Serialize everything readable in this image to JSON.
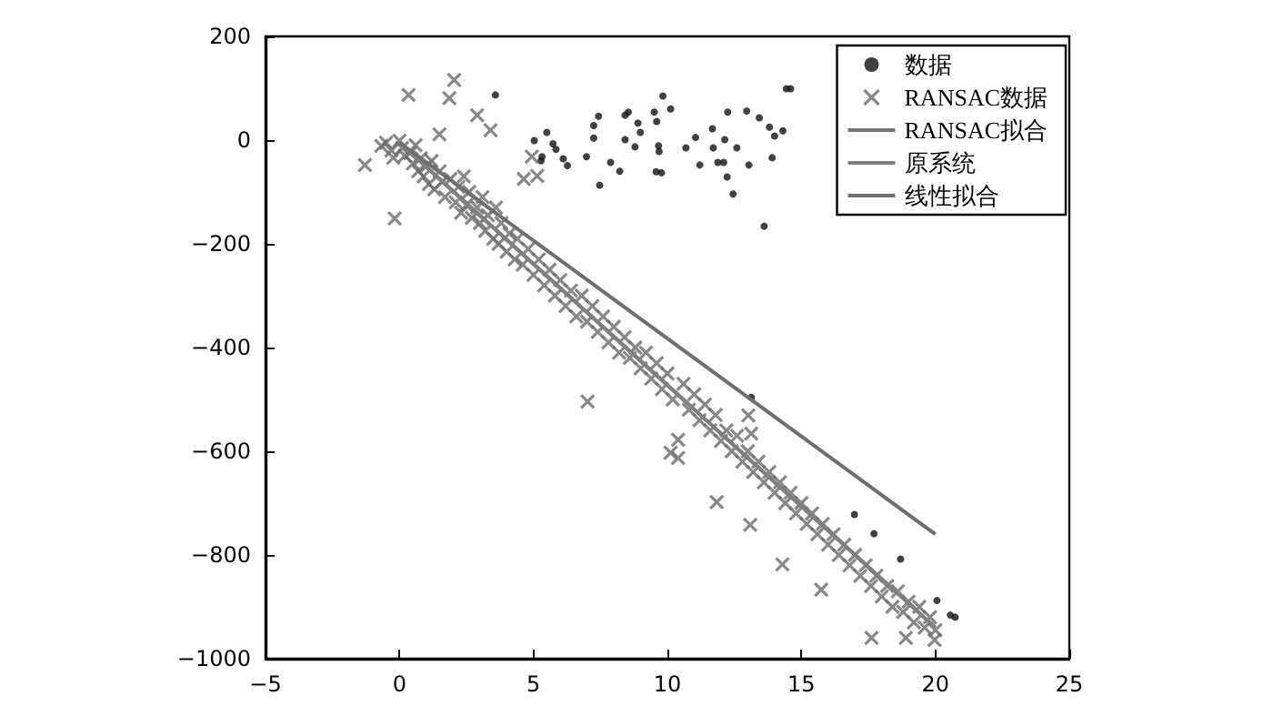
{
  "chart_data": {
    "type": "scatter",
    "xlim": [
      -5,
      25
    ],
    "xticks": [
      -5,
      0,
      5,
      10,
      15,
      20,
      25
    ],
    "ylim": [
      -1000,
      200
    ],
    "yticks": [
      -1000,
      -800,
      -600,
      -400,
      -200,
      0,
      200
    ],
    "grid": false,
    "legend": "top right",
    "series": [
      {
        "name": "数据",
        "type": "scatter",
        "marker": "circle",
        "color": "#111111",
        "x": [
          3.58,
          5.03,
          5.5,
          5.73,
          5.84,
          5.32,
          5.28,
          6.11,
          6.27,
          6.98,
          7.25,
          7.25,
          7.43,
          7.47,
          7.88,
          8.22,
          8.42,
          8.54,
          8.42,
          8.79,
          8.9,
          8.99,
          9.51,
          9.6,
          9.67,
          9.69,
          9.83,
          10.12,
          9.58,
          9.78,
          10.69,
          11.05,
          11.21,
          11.68,
          11.71,
          11.88,
          12.1,
          12.14,
          12.25,
          12.23,
          12.45,
          12.59,
          12.96,
          13.04,
          13.43,
          13.61,
          13.81,
          14.0,
          13.91,
          14.31,
          14.44,
          14.6,
          13.13,
          16.98,
          17.71,
          18.7,
          20.06,
          20.56,
          20.74
        ],
        "values": [
          87,
          -1,
          15,
          -7,
          -18,
          -32,
          -40,
          -36,
          -49,
          -32,
          28,
          4,
          46,
          -87,
          -43,
          -60,
          48,
          54,
          1,
          -13,
          33,
          15,
          54,
          36,
          -11,
          -22,
          85,
          60,
          -61,
          -63,
          -15,
          5,
          -48,
          22,
          -15,
          -43,
          -43,
          1,
          54,
          -71,
          -104,
          -15,
          56,
          -48,
          43,
          -166,
          25,
          8,
          -34,
          18,
          99,
          99,
          -496,
          -722,
          -759,
          -808,
          -888,
          -916,
          -920
        ]
      },
      {
        "name": "RANSAC数据",
        "type": "scatter",
        "marker": "cross",
        "color": "#6a6a6a",
        "x": [
          -1.29,
          -0.68,
          -0.5,
          -0.3,
          -0.23,
          -0.18,
          0,
          0.1,
          0.2,
          0.34,
          0.4,
          0.5,
          0.6,
          0.7,
          0.8,
          0.9,
          1.0,
          1.1,
          1.2,
          1.3,
          1.49,
          1.5,
          1.6,
          1.7,
          1.86,
          1.9,
          2.04,
          2.1,
          2.2,
          2.3,
          2.4,
          2.5,
          2.6,
          2.7,
          2.9,
          2.9,
          3.0,
          3.1,
          3.2,
          3.4,
          3.3,
          3.5,
          3.6,
          3.7,
          3.8,
          4.0,
          4.1,
          4.3,
          4.4,
          4.64,
          4.6,
          4.8,
          4.94,
          5.0,
          5.14,
          5.2,
          5.4,
          5.6,
          5.8,
          6.0,
          6.2,
          6.4,
          6.6,
          6.8,
          7.02,
          7.0,
          7.2,
          7.4,
          7.6,
          7.8,
          8.0,
          8.2,
          8.4,
          8.6,
          8.8,
          9.0,
          9.2,
          9.4,
          9.6,
          9.8,
          10.0,
          10.12,
          10.4,
          10.4,
          10.2,
          10.6,
          10.8,
          11.0,
          11.2,
          11.4,
          11.6,
          11.84,
          11.8,
          12.0,
          12.2,
          12.4,
          12.6,
          12.8,
          13.02,
          13.13,
          13.09,
          13.0,
          13.2,
          13.4,
          13.6,
          13.8,
          14.0,
          14.29,
          14.2,
          14.4,
          14.6,
          14.8,
          15.0,
          15.2,
          15.4,
          15.74,
          15.6,
          15.8,
          16.0,
          16.2,
          16.4,
          16.6,
          16.8,
          17.0,
          17.2,
          17.4,
          17.62,
          17.6,
          17.8,
          18.0,
          18.2,
          18.4,
          18.6,
          18.9,
          18.8,
          19.0,
          19.2,
          19.4,
          19.6,
          19.8,
          19.97,
          20.0
        ],
        "values": [
          -48,
          -11,
          -5,
          -20,
          -34,
          -151,
          -1,
          -15,
          -30,
          87,
          -25,
          -45,
          -10,
          -60,
          -35,
          -70,
          -50,
          -85,
          -40,
          -95,
          11,
          -60,
          -80,
          -110,
          81,
          -75,
          116,
          -120,
          -90,
          -140,
          -70,
          -125,
          -100,
          -150,
          48,
          -130,
          -160,
          -110,
          -175,
          19,
          -145,
          -190,
          -130,
          -200,
          -160,
          -215,
          -180,
          -230,
          -190,
          -75,
          -240,
          -210,
          -32,
          -260,
          -69,
          -230,
          -280,
          -250,
          -300,
          -270,
          -320,
          -290,
          -340,
          -300,
          -504,
          -350,
          -320,
          -370,
          -340,
          -390,
          -360,
          -410,
          -380,
          -420,
          -400,
          -440,
          -410,
          -460,
          -430,
          -480,
          -450,
          -603,
          -578,
          -613,
          -500,
          -470,
          -520,
          -490,
          -540,
          -510,
          -560,
          -698,
          -530,
          -580,
          -560,
          -600,
          -570,
          -620,
          -531,
          -566,
          -742,
          -600,
          -640,
          -620,
          -660,
          -640,
          -680,
          -818,
          -660,
          -700,
          -680,
          -720,
          -700,
          -740,
          -720,
          -867,
          -760,
          -740,
          -780,
          -760,
          -800,
          -780,
          -820,
          -800,
          -840,
          -820,
          -960,
          -860,
          -840,
          -880,
          -860,
          -900,
          -870,
          -960,
          -910,
          -890,
          -930,
          -900,
          -940,
          -920,
          -964,
          -945
        ]
      },
      {
        "name": "RANSAC拟合",
        "type": "line",
        "marker": "none",
        "color": "#777777",
        "x": [
          0,
          20
        ],
        "values": [
          -5,
          -940
        ]
      },
      {
        "name": "原系统",
        "type": "line",
        "marker": "none",
        "color": "#808080",
        "x": [
          0,
          20
        ],
        "values": [
          -5,
          -940
        ]
      },
      {
        "name": "线性拟合",
        "type": "line",
        "marker": "none",
        "color": "#6e6e6e",
        "x": [
          0,
          20
        ],
        "values": [
          -5,
          -760
        ]
      }
    ]
  }
}
